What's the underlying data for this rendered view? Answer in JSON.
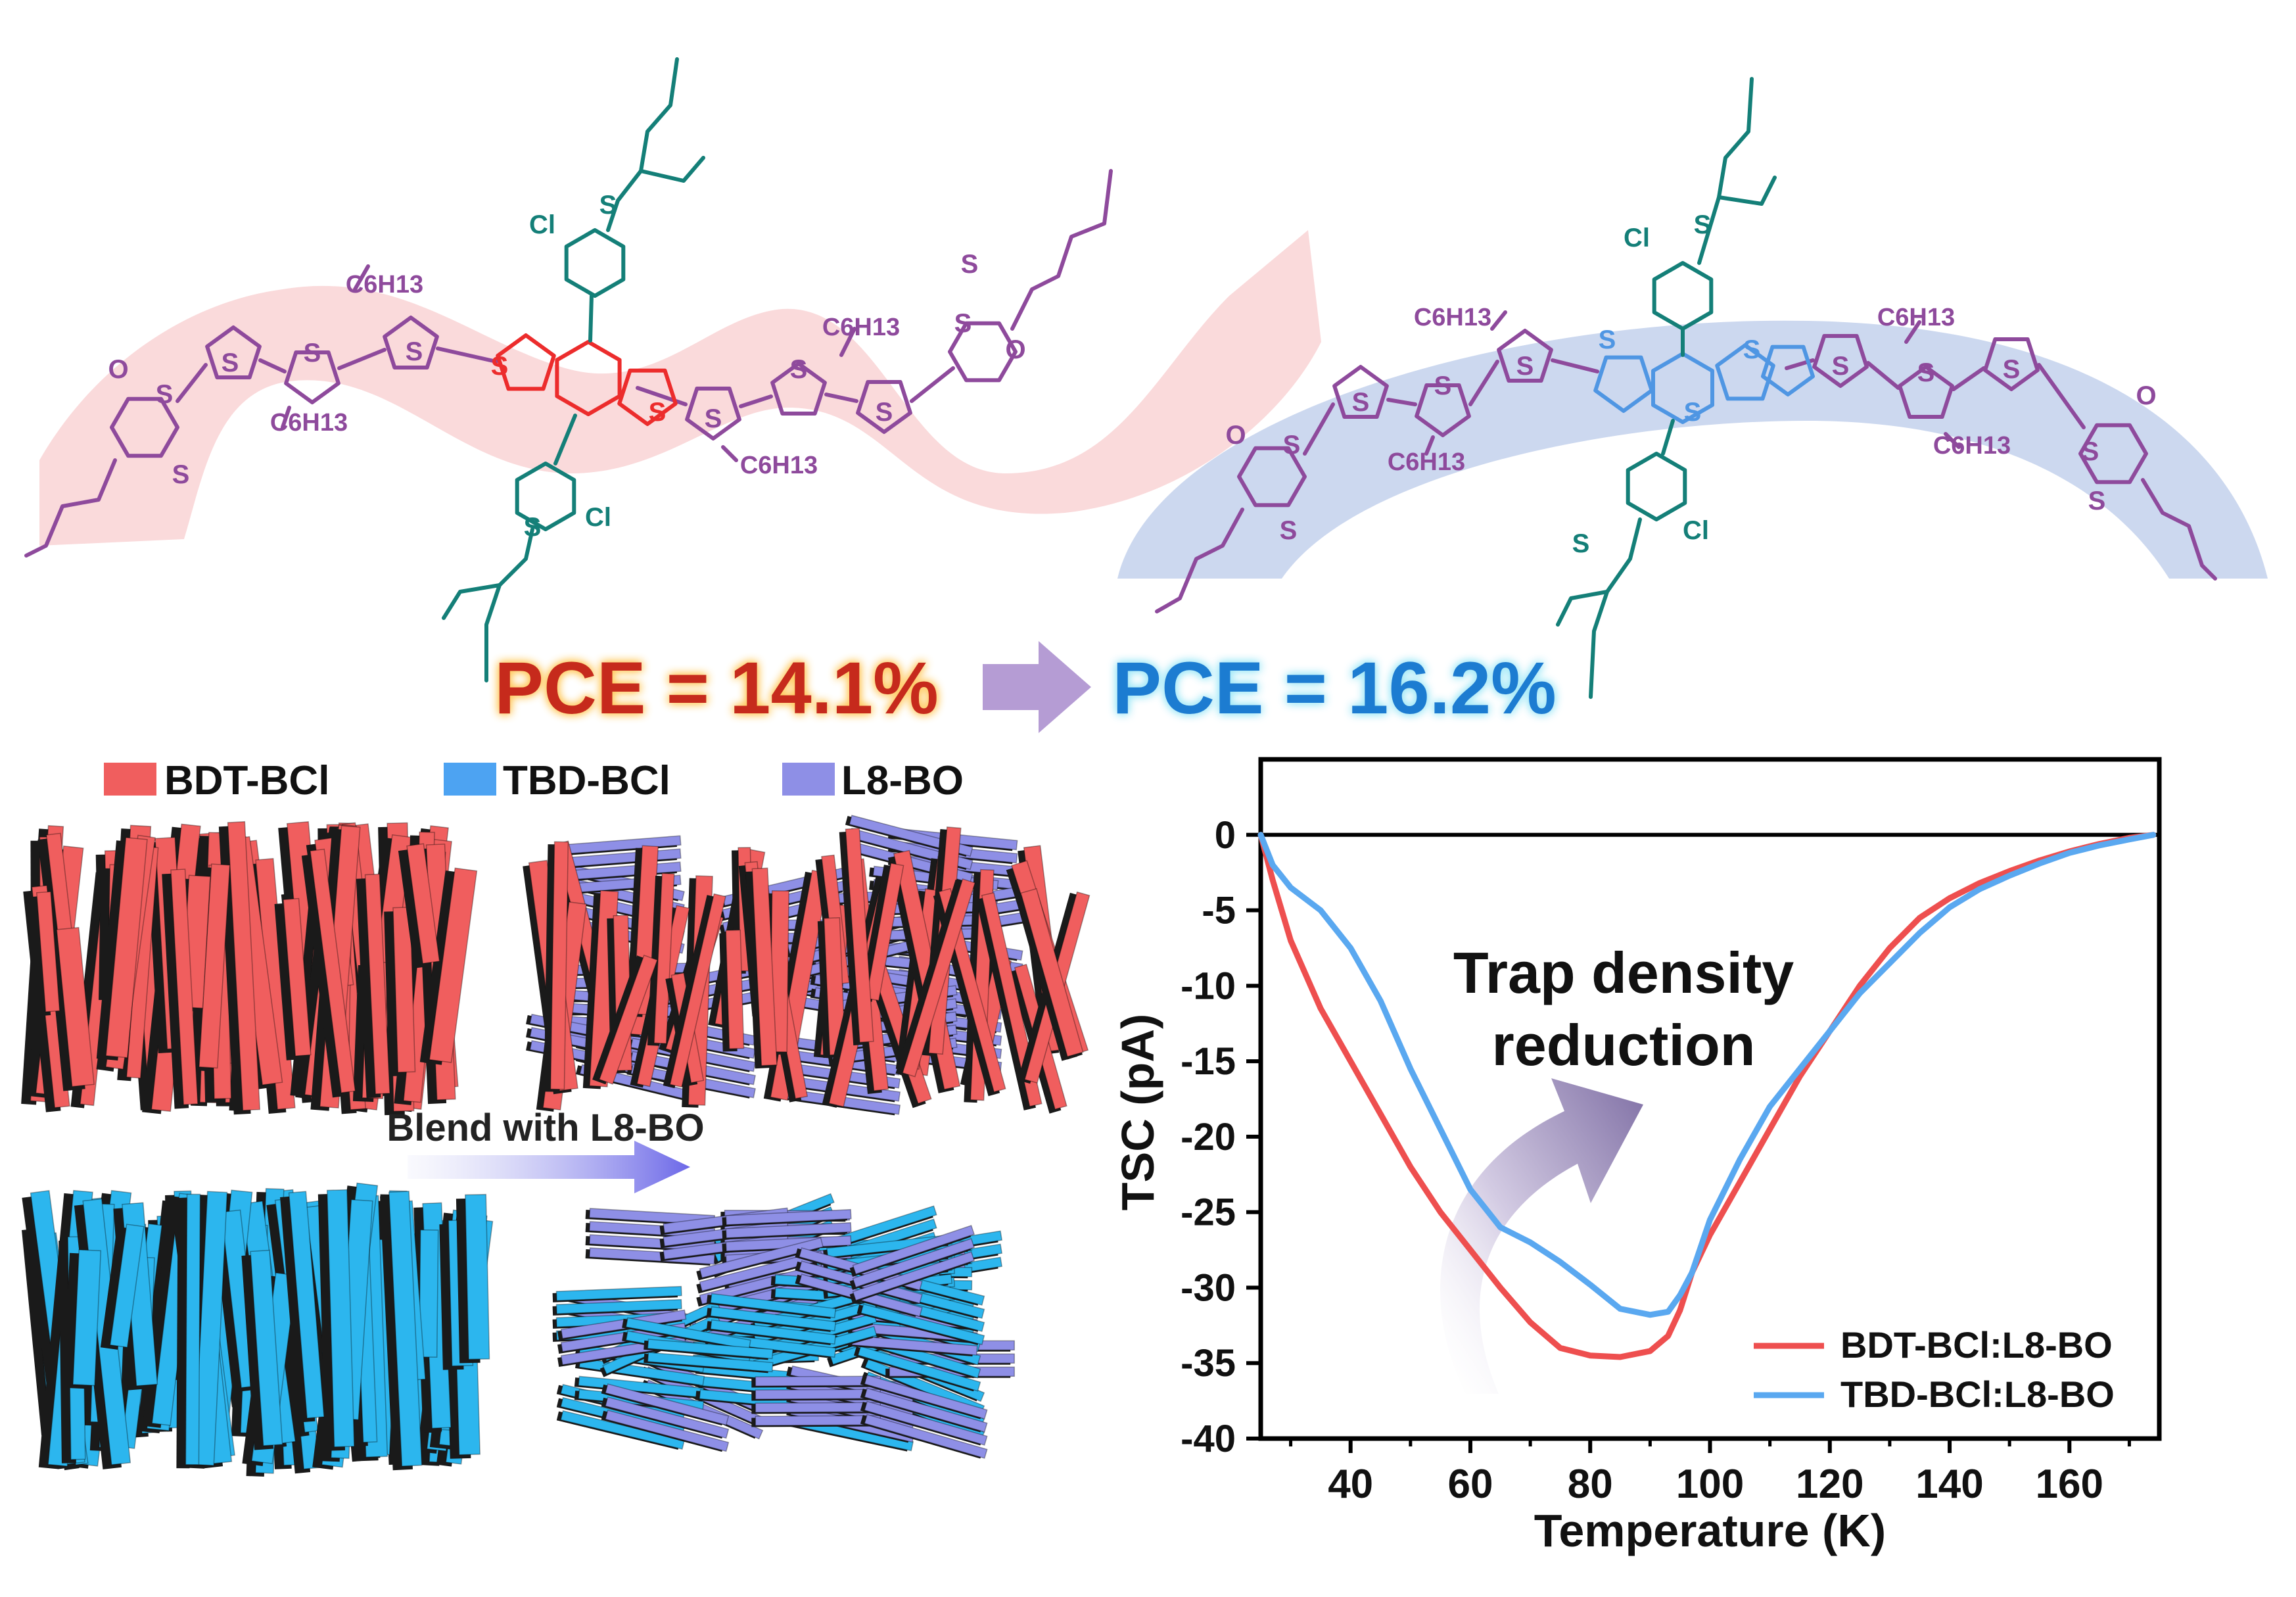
{
  "colors": {
    "red": "#F04B4F",
    "red_dark": "#C62A1D",
    "blue": "#4DA3F2",
    "blue_dark": "#1E7BD1",
    "purple_mol": "#8E4A9C",
    "teal": "#147F78",
    "core_red": "#EC2C2C",
    "core_blue": "#4F96E3",
    "lavender": "#8A8EEA",
    "bar_red": "#F05E5E",
    "bar_blue": "#2CB6EE",
    "bar_lav": "#8E8FE6",
    "band_red": "#F9D0D2",
    "band_blue": "#C9D6EF",
    "arrow_purple": "#B59CD4"
  },
  "molecules": {
    "left": {
      "substituents": [
        "C6H13",
        "C6H13",
        "C6H13",
        "C6H13"
      ],
      "atoms": [
        "S",
        "S",
        "S",
        "S",
        "S",
        "S",
        "S",
        "S",
        "S",
        "S",
        "S",
        "S",
        "S",
        "S",
        "O",
        "O",
        "Cl",
        "Cl"
      ]
    },
    "right": {
      "substituents": [
        "C6H13",
        "C6H13",
        "C6H13",
        "C6H13"
      ],
      "atoms": [
        "S",
        "S",
        "S",
        "S",
        "S",
        "S",
        "S",
        "S",
        "S",
        "S",
        "S",
        "S",
        "S",
        "S",
        "S",
        "O",
        "O",
        "Cl",
        "Cl"
      ]
    }
  },
  "pce": {
    "left": "PCE = 14.1%",
    "right": "PCE = 16.2%"
  },
  "legend": {
    "items": [
      {
        "label": "BDT-BCl",
        "color": "#F05E5E"
      },
      {
        "label": "TBD-BCl",
        "color": "#4DA3F2"
      },
      {
        "label": "L8-BO",
        "color": "#8E8FE6"
      }
    ]
  },
  "blend_label": "Blend with L8-BO",
  "annotation": [
    "Trap density",
    "reduction"
  ],
  "chart_data": {
    "type": "line",
    "xlabel": "Temperature (K)",
    "ylabel": "TSC (pA)",
    "xlim": [
      25,
      175
    ],
    "ylim": [
      -40,
      5
    ],
    "xticks": [
      40,
      60,
      80,
      100,
      120,
      140,
      160
    ],
    "yticks": [
      0,
      -5,
      -10,
      -15,
      -20,
      -25,
      -30,
      -35,
      -40
    ],
    "zero_line": 0,
    "series": [
      {
        "name": "BDT-BCl:L8-BO",
        "color": "#EE4F4F",
        "x": [
          25,
          27,
          30,
          35,
          40,
          45,
          50,
          55,
          60,
          65,
          70,
          75,
          80,
          85,
          90,
          93,
          95,
          97,
          100,
          105,
          110,
          115,
          120,
          125,
          130,
          135,
          140,
          145,
          150,
          155,
          160,
          165,
          170,
          174
        ],
        "y": [
          0,
          -3,
          -7,
          -11.5,
          -15,
          -18.5,
          -22,
          -25,
          -27.5,
          -30,
          -32.3,
          -34,
          -34.5,
          -34.6,
          -34.2,
          -33.2,
          -31.5,
          -29,
          -26.5,
          -23,
          -19.5,
          -16,
          -13,
          -10,
          -7.5,
          -5.5,
          -4.2,
          -3.2,
          -2.4,
          -1.7,
          -1.1,
          -0.6,
          -0.2,
          0
        ]
      },
      {
        "name": "TBD-BCl:L8-BO",
        "color": "#5AA8F0",
        "x": [
          25,
          27,
          30,
          35,
          40,
          45,
          50,
          55,
          60,
          65,
          70,
          75,
          80,
          85,
          90,
          93,
          95,
          97,
          100,
          105,
          110,
          115,
          120,
          125,
          130,
          135,
          140,
          145,
          150,
          155,
          160,
          165,
          170,
          174
        ],
        "y": [
          0,
          -2,
          -3.5,
          -5,
          -7.5,
          -11,
          -15.5,
          -19.5,
          -23.5,
          -26,
          -27,
          -28.3,
          -29.8,
          -31.4,
          -31.8,
          -31.6,
          -30.5,
          -29,
          -25.5,
          -21.5,
          -18,
          -15.5,
          -13,
          -10.5,
          -8.5,
          -6.5,
          -4.8,
          -3.6,
          -2.7,
          -1.9,
          -1.2,
          -0.7,
          -0.3,
          0
        ]
      }
    ]
  }
}
